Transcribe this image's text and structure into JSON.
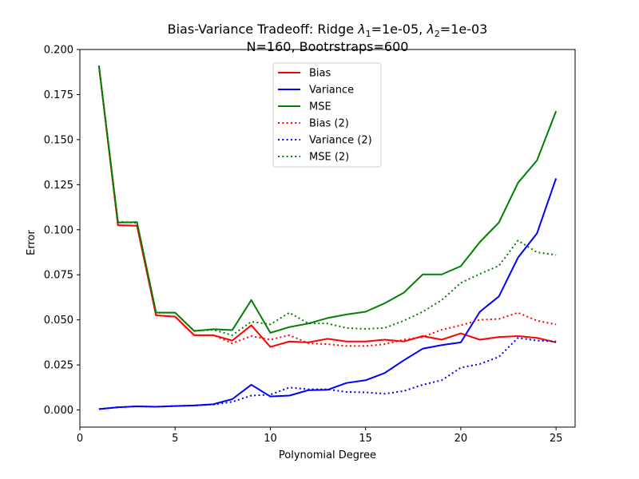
{
  "chart_data": {
    "type": "line",
    "title_line1_prefix": "Bias-Variance Tradeoff: Ridge ",
    "title_line1_l1": "λ",
    "title_line1_l1_sub": "1",
    "title_line1_mid": "=1e-05, ",
    "title_line1_l2": "λ",
    "title_line1_l2_sub": "2",
    "title_line1_suffix": "=1e-03",
    "title_line2": "N=160, Bootrstraps=600",
    "xlabel": "Polynomial Degree",
    "ylabel": "Error",
    "xlim": [
      0,
      26
    ],
    "ylim": [
      -0.0095,
      0.2
    ],
    "xticks": [
      0,
      5,
      10,
      15,
      20,
      25
    ],
    "xtick_labels": [
      "0",
      "5",
      "10",
      "15",
      "20",
      "25"
    ],
    "yticks": [
      0.0,
      0.025,
      0.05,
      0.075,
      0.1,
      0.125,
      0.15,
      0.175,
      0.2
    ],
    "ytick_labels": [
      "0.000",
      "0.025",
      "0.050",
      "0.075",
      "0.100",
      "0.125",
      "0.150",
      "0.175",
      "0.200"
    ],
    "grid": false,
    "legend_position": "upper center",
    "x": [
      1,
      2,
      3,
      4,
      5,
      6,
      7,
      8,
      9,
      10,
      11,
      12,
      13,
      14,
      15,
      16,
      17,
      18,
      19,
      20,
      21,
      22,
      23,
      24,
      25
    ],
    "series": [
      {
        "name": "Bias",
        "color": "#ff0000",
        "style": "solid",
        "values": [
          0.191,
          0.1025,
          0.1022,
          0.0525,
          0.0518,
          0.0415,
          0.0415,
          0.0385,
          0.047,
          0.035,
          0.038,
          0.0375,
          0.0395,
          0.038,
          0.038,
          0.039,
          0.038,
          0.041,
          0.039,
          0.0425,
          0.039,
          0.0405,
          0.041,
          0.04,
          0.0375
        ]
      },
      {
        "name": "Variance",
        "color": "#0000ff",
        "style": "solid",
        "values": [
          0.0005,
          0.0015,
          0.002,
          0.0018,
          0.0022,
          0.0025,
          0.0032,
          0.006,
          0.014,
          0.0075,
          0.008,
          0.011,
          0.0112,
          0.015,
          0.0165,
          0.0205,
          0.0275,
          0.034,
          0.036,
          0.0375,
          0.0545,
          0.063,
          0.0845,
          0.098,
          0.1285
        ]
      },
      {
        "name": "MSE",
        "color": "#008000",
        "style": "solid",
        "values": [
          0.191,
          0.104,
          0.1042,
          0.054,
          0.054,
          0.0438,
          0.0448,
          0.0443,
          0.061,
          0.0428,
          0.046,
          0.048,
          0.051,
          0.053,
          0.0545,
          0.0592,
          0.065,
          0.0752,
          0.0752,
          0.0798,
          0.0932,
          0.104,
          0.126,
          0.1385,
          0.1658
        ]
      },
      {
        "name": "Bias (2)",
        "color": "#ff0000",
        "style": "dotted",
        "values": [
          0.191,
          0.1025,
          0.1022,
          0.0525,
          0.0518,
          0.0415,
          0.0415,
          0.037,
          0.041,
          0.039,
          0.0415,
          0.037,
          0.0365,
          0.0355,
          0.0355,
          0.0365,
          0.039,
          0.0405,
          0.0445,
          0.047,
          0.05,
          0.0505,
          0.054,
          0.0495,
          0.0475
        ]
      },
      {
        "name": "Variance (2)",
        "color": "#0000ff",
        "style": "dotted",
        "values": [
          0.0005,
          0.0015,
          0.002,
          0.0018,
          0.0022,
          0.0025,
          0.003,
          0.0045,
          0.008,
          0.0085,
          0.0125,
          0.0115,
          0.0115,
          0.01,
          0.0098,
          0.009,
          0.0105,
          0.014,
          0.0165,
          0.0235,
          0.0255,
          0.0295,
          0.04,
          0.0385,
          0.038
        ]
      },
      {
        "name": "MSE (2)",
        "color": "#008000",
        "style": "dotted",
        "values": [
          0.191,
          0.1045,
          0.1038,
          0.054,
          0.054,
          0.044,
          0.0445,
          0.0415,
          0.049,
          0.0475,
          0.054,
          0.048,
          0.048,
          0.0455,
          0.045,
          0.0455,
          0.0495,
          0.0545,
          0.061,
          0.0705,
          0.0755,
          0.08,
          0.094,
          0.0875,
          0.086
        ]
      }
    ]
  }
}
